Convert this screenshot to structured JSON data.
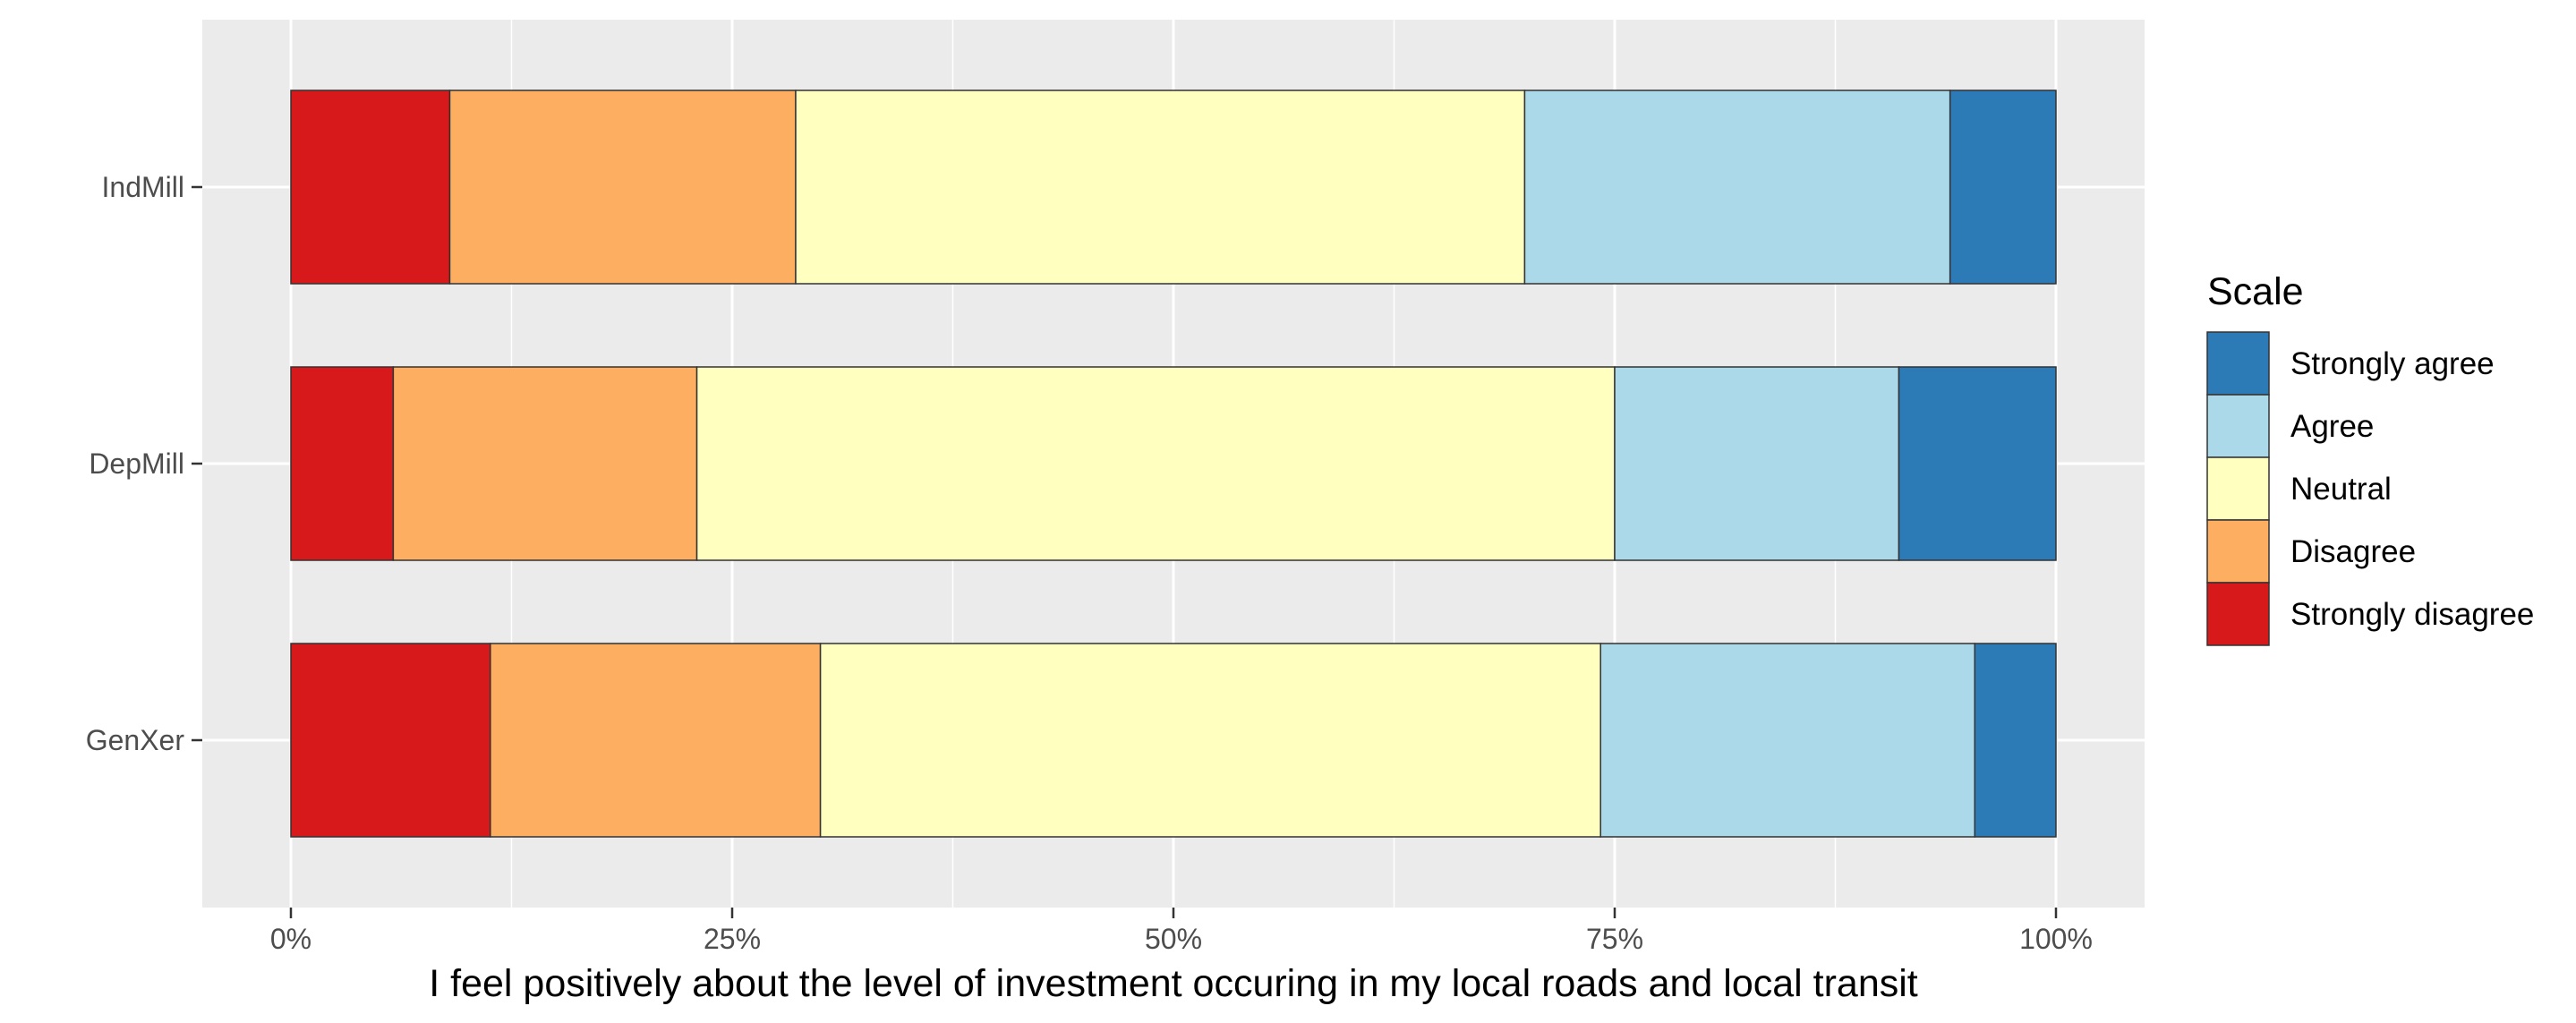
{
  "chart_data": {
    "type": "bar",
    "orientation": "horizontal",
    "stacked": "percent",
    "categories": [
      "IndMill",
      "DepMill",
      "GenXer"
    ],
    "series": [
      {
        "name": "Strongly disagree",
        "color": "#d7191c",
        "values": [
          9.0,
          5.8,
          11.3
        ]
      },
      {
        "name": "Disagree",
        "color": "#fdae61",
        "values": [
          19.6,
          17.2,
          18.7
        ]
      },
      {
        "name": "Neutral",
        "color": "#ffffbf",
        "values": [
          41.3,
          52.0,
          44.2
        ]
      },
      {
        "name": "Agree",
        "color": "#abd9e9",
        "values": [
          24.1,
          16.1,
          21.2
        ]
      },
      {
        "name": "Strongly agree",
        "color": "#2c7bb6",
        "values": [
          6.0,
          8.9,
          4.6
        ]
      }
    ],
    "xlim": [
      0,
      100
    ],
    "x_ticks": [
      0,
      25,
      50,
      75,
      100
    ],
    "x_tick_labels": [
      "0%",
      "25%",
      "50%",
      "75%",
      "100%"
    ],
    "xlabel": "I feel positively about the level of investment occuring in my local roads and local transit",
    "ylabel": "",
    "grid": true,
    "panel_background": "#ebebeb",
    "legend": {
      "title": "Scale",
      "position": "right",
      "order": [
        "Strongly agree",
        "Agree",
        "Neutral",
        "Disagree",
        "Strongly disagree"
      ]
    }
  }
}
